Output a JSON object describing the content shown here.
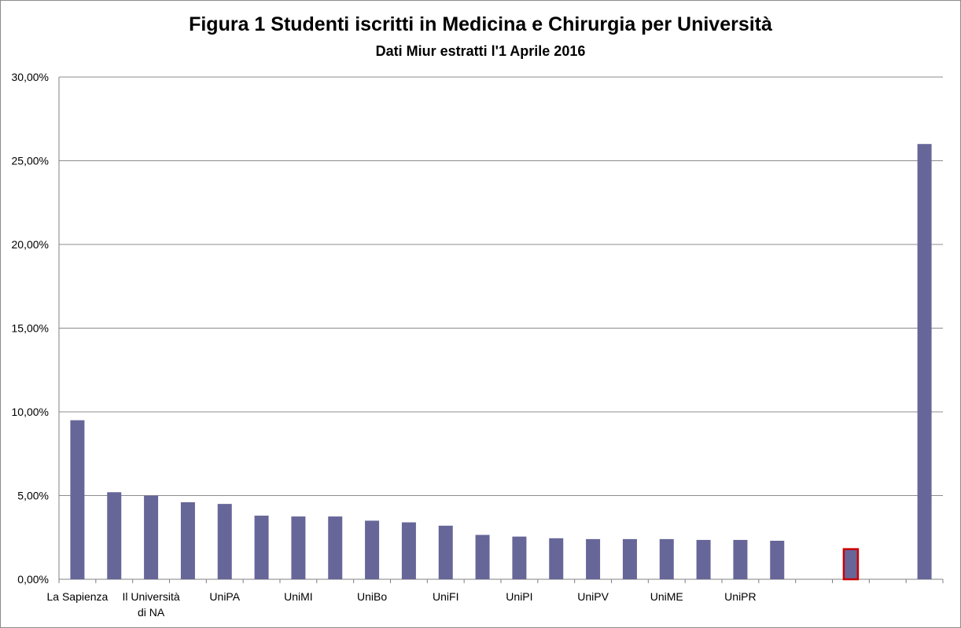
{
  "chart_data": {
    "type": "bar",
    "title": "Figura 1 Studenti iscritti in Medicina e Chirurgia per Università",
    "subtitle": "Dati Miur estratti l'1 Aprile 2016",
    "xlabel": "",
    "ylabel": "",
    "ylim": [
      0,
      30
    ],
    "y_ticks": [
      "0,00%",
      "5,00%",
      "10,00%",
      "15,00%",
      "20,00%",
      "25,00%",
      "30,00%"
    ],
    "grid": "horizontal",
    "legend": "none",
    "bar_color": "#666699",
    "highlight_color": "#cc0000",
    "highlight_index": 21,
    "categories": [
      "La Sapienza",
      "",
      "Il Università di NA",
      "",
      "UniPA",
      "",
      "UniMI",
      "",
      "UniBo",
      "",
      "UniFI",
      "",
      "UniPI",
      "",
      "UniPV",
      "",
      "UniME",
      "",
      "UniPR",
      "",
      "",
      "",
      "",
      ""
    ],
    "values": [
      9.5,
      5.2,
      5.0,
      4.6,
      4.5,
      3.8,
      3.75,
      3.75,
      3.5,
      3.4,
      3.2,
      2.65,
      2.55,
      2.45,
      2.4,
      2.4,
      2.4,
      2.35,
      2.35,
      2.3,
      null,
      1.8,
      null,
      26.0
    ]
  }
}
